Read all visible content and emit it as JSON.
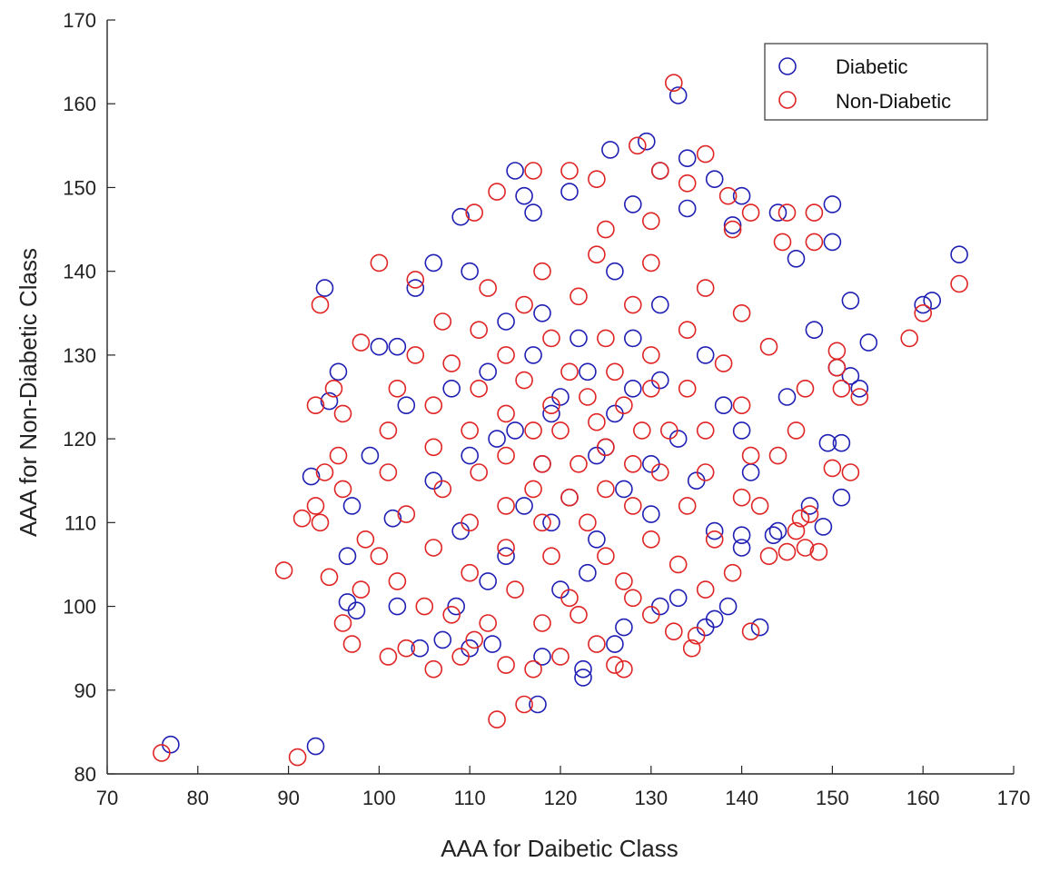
{
  "chart_data": {
    "type": "scatter",
    "title": "",
    "xlabel": "AAA for Daibetic Class",
    "ylabel": "AAA for Non-Diabetic Class",
    "xlim": [
      70,
      170
    ],
    "ylim": [
      80,
      170
    ],
    "xticks": [
      70,
      80,
      90,
      100,
      110,
      120,
      130,
      140,
      150,
      160,
      170
    ],
    "yticks": [
      80,
      90,
      100,
      110,
      120,
      130,
      140,
      150,
      160,
      170
    ],
    "grid": false,
    "legend_position": "top-right",
    "marker": "open-circle",
    "series": [
      {
        "name": "Diabetic",
        "color": "#1f1fb4",
        "points": [
          [
            77,
            83.5
          ],
          [
            93,
            83.3
          ],
          [
            94,
            138
          ],
          [
            92.5,
            115.5
          ],
          [
            96.5,
            100.5
          ],
          [
            97.5,
            99.5
          ],
          [
            95.5,
            128
          ],
          [
            94.5,
            124.5
          ],
          [
            97,
            112
          ],
          [
            96.5,
            106
          ],
          [
            102,
            100
          ],
          [
            101.5,
            110.5
          ],
          [
            104.5,
            95
          ],
          [
            107,
            96
          ],
          [
            109,
            146.5
          ],
          [
            115,
            152
          ],
          [
            116,
            149
          ],
          [
            117,
            147
          ],
          [
            121,
            149.5
          ],
          [
            125.5,
            154.5
          ],
          [
            128,
            148
          ],
          [
            129.5,
            155.5
          ],
          [
            131,
            152
          ],
          [
            133,
            161
          ],
          [
            134,
            153.5
          ],
          [
            134,
            147.5
          ],
          [
            137,
            151
          ],
          [
            139,
            145.5
          ],
          [
            140,
            149
          ],
          [
            144,
            147
          ],
          [
            150,
            148
          ],
          [
            150,
            143.5
          ],
          [
            146,
            141.5
          ],
          [
            148,
            133
          ],
          [
            152,
            136.5
          ],
          [
            154,
            131.5
          ],
          [
            150.5,
            128.5
          ],
          [
            152,
            127.5
          ],
          [
            153,
            126
          ],
          [
            151,
            119.5
          ],
          [
            149.5,
            119.5
          ],
          [
            151,
            113
          ],
          [
            149,
            109.5
          ],
          [
            147.5,
            112
          ],
          [
            144,
            109
          ],
          [
            143.5,
            108.5
          ],
          [
            140,
            107
          ],
          [
            140,
            108.5
          ],
          [
            142,
            97.5
          ],
          [
            138.5,
            100
          ],
          [
            137,
            98.5
          ],
          [
            136,
            97.5
          ],
          [
            133,
            101
          ],
          [
            131,
            100
          ],
          [
            127,
            97.5
          ],
          [
            126,
            95.5
          ],
          [
            122.5,
            92.5
          ],
          [
            122.5,
            91.5
          ],
          [
            117.5,
            88.3
          ],
          [
            118,
            94
          ],
          [
            112.5,
            95.5
          ],
          [
            108.5,
            100
          ],
          [
            110,
            95
          ],
          [
            160,
            136
          ],
          [
            161,
            136.5
          ],
          [
            164,
            142
          ],
          [
            123,
            104
          ],
          [
            131,
            136
          ],
          [
            104,
            138
          ],
          [
            106,
            141
          ],
          [
            110,
            140
          ],
          [
            126,
            140
          ],
          [
            118,
            135
          ],
          [
            114,
            106
          ],
          [
            136,
            130
          ],
          [
            140,
            121
          ],
          [
            145,
            125
          ],
          [
            141,
            116
          ],
          [
            103,
            124
          ],
          [
            99,
            118
          ],
          [
            100,
            131
          ],
          [
            102,
            131
          ],
          [
            108,
            126
          ],
          [
            109,
            109
          ],
          [
            130,
            111
          ],
          [
            137,
            109
          ],
          [
            120,
            102
          ],
          [
            112,
            103
          ],
          [
            116,
            112
          ],
          [
            124,
            118
          ],
          [
            128,
            126
          ],
          [
            119,
            123
          ],
          [
            133,
            120
          ],
          [
            122,
            132
          ],
          [
            112,
            128
          ],
          [
            127,
            114
          ],
          [
            118,
            117
          ],
          [
            126,
            123
          ],
          [
            115,
            121
          ],
          [
            130,
            117
          ],
          [
            121,
            113
          ],
          [
            123,
            128
          ],
          [
            117,
            130
          ],
          [
            131,
            127
          ],
          [
            110,
            118
          ],
          [
            135,
            115
          ],
          [
            124,
            108
          ],
          [
            114,
            134
          ],
          [
            128,
            132
          ],
          [
            119,
            110
          ],
          [
            106,
            115
          ],
          [
            138,
            124
          ],
          [
            113,
            120
          ],
          [
            125,
            119
          ],
          [
            120,
            125
          ]
        ]
      },
      {
        "name": "Non-Diabetic",
        "color": "#e02424",
        "points": [
          [
            76,
            82.5
          ],
          [
            91,
            82
          ],
          [
            89.5,
            104.3
          ],
          [
            91.5,
            110.5
          ],
          [
            93,
            112
          ],
          [
            93.5,
            110
          ],
          [
            93.5,
            136
          ],
          [
            93,
            124
          ],
          [
            96,
            114
          ],
          [
            95.5,
            118
          ],
          [
            94,
            116
          ],
          [
            96,
            98
          ],
          [
            97,
            95.5
          ],
          [
            94.5,
            103.5
          ],
          [
            98,
            102
          ],
          [
            101,
            94
          ],
          [
            103,
            95
          ],
          [
            106,
            92.5
          ],
          [
            109,
            94
          ],
          [
            110.5,
            96
          ],
          [
            113,
            86.5
          ],
          [
            116,
            88.3
          ],
          [
            117,
            92.5
          ],
          [
            114,
            93
          ],
          [
            120,
            94
          ],
          [
            124,
            95.5
          ],
          [
            126,
            93
          ],
          [
            127,
            92.5
          ],
          [
            130,
            99
          ],
          [
            132.5,
            97
          ],
          [
            134.5,
            95
          ],
          [
            135,
            96.5
          ],
          [
            141,
            97
          ],
          [
            143,
            106
          ],
          [
            145,
            106.5
          ],
          [
            147,
            107
          ],
          [
            148.5,
            106.5
          ],
          [
            146,
            109
          ],
          [
            146.5,
            110.5
          ],
          [
            147.5,
            111
          ],
          [
            150,
            116.5
          ],
          [
            152,
            116
          ],
          [
            151,
            126
          ],
          [
            150.5,
            130.5
          ],
          [
            153,
            125
          ],
          [
            150.5,
            128.5
          ],
          [
            158.5,
            132
          ],
          [
            160,
            135
          ],
          [
            164,
            138.5
          ],
          [
            145,
            147
          ],
          [
            141,
            147
          ],
          [
            148,
            147
          ],
          [
            136,
            154
          ],
          [
            131,
            152
          ],
          [
            128.5,
            155
          ],
          [
            132.5,
            162.5
          ],
          [
            121,
            152
          ],
          [
            117,
            152
          ],
          [
            113,
            149.5
          ],
          [
            110.5,
            147
          ],
          [
            124,
            151
          ],
          [
            125,
            145
          ],
          [
            130,
            146
          ],
          [
            134,
            150.5
          ],
          [
            138.5,
            149
          ],
          [
            139,
            145
          ],
          [
            144.5,
            143.5
          ],
          [
            148,
            143.5
          ],
          [
            104,
            139
          ],
          [
            100,
            141
          ],
          [
            98,
            131.5
          ],
          [
            96,
            123
          ],
          [
            95,
            126
          ],
          [
            98.5,
            108
          ],
          [
            100,
            106
          ],
          [
            102,
            103
          ],
          [
            105,
            100
          ],
          [
            108,
            99
          ],
          [
            112,
            98
          ],
          [
            118,
            98
          ],
          [
            122,
            99
          ],
          [
            128,
            101
          ],
          [
            136,
            102
          ],
          [
            139,
            104
          ],
          [
            142,
            112
          ],
          [
            144,
            118
          ],
          [
            146,
            121
          ],
          [
            147,
            126
          ],
          [
            143,
            131
          ],
          [
            140,
            135
          ],
          [
            136,
            138
          ],
          [
            130,
            141
          ],
          [
            124,
            142
          ],
          [
            118,
            140
          ],
          [
            112,
            138
          ],
          [
            107,
            134
          ],
          [
            104,
            130
          ],
          [
            102,
            126
          ],
          [
            101,
            121
          ],
          [
            101,
            116
          ],
          [
            103,
            111
          ],
          [
            106,
            107
          ],
          [
            110,
            104
          ],
          [
            115,
            102
          ],
          [
            121,
            101
          ],
          [
            127,
            103
          ],
          [
            133,
            105
          ],
          [
            137,
            108
          ],
          [
            140,
            113
          ],
          [
            141,
            118
          ],
          [
            140,
            124
          ],
          [
            138,
            129
          ],
          [
            134,
            133
          ],
          [
            128,
            136
          ],
          [
            122,
            137
          ],
          [
            116,
            136
          ],
          [
            111,
            133
          ],
          [
            108,
            129
          ],
          [
            106,
            124
          ],
          [
            106,
            119
          ],
          [
            107,
            114
          ],
          [
            110,
            110
          ],
          [
            114,
            107
          ],
          [
            119,
            106
          ],
          [
            125,
            106
          ],
          [
            130,
            108
          ],
          [
            134,
            112
          ],
          [
            136,
            116
          ],
          [
            136,
            121
          ],
          [
            134,
            126
          ],
          [
            130,
            130
          ],
          [
            125,
            132
          ],
          [
            119,
            132
          ],
          [
            114,
            130
          ],
          [
            111,
            126
          ],
          [
            110,
            121
          ],
          [
            111,
            116
          ],
          [
            114,
            112
          ],
          [
            118,
            110
          ],
          [
            123,
            110
          ],
          [
            128,
            112
          ],
          [
            131,
            116
          ],
          [
            132,
            121
          ],
          [
            130,
            126
          ],
          [
            126,
            128
          ],
          [
            121,
            128
          ],
          [
            116,
            127
          ],
          [
            114,
            123
          ],
          [
            114,
            118
          ],
          [
            117,
            114
          ],
          [
            121,
            113
          ],
          [
            125,
            114
          ],
          [
            128,
            117
          ],
          [
            129,
            121
          ],
          [
            127,
            124
          ],
          [
            123,
            125
          ],
          [
            119,
            124
          ],
          [
            117,
            121
          ],
          [
            118,
            117
          ],
          [
            122,
            117
          ],
          [
            125,
            119
          ],
          [
            124,
            122
          ],
          [
            120,
            121
          ]
        ]
      }
    ]
  }
}
